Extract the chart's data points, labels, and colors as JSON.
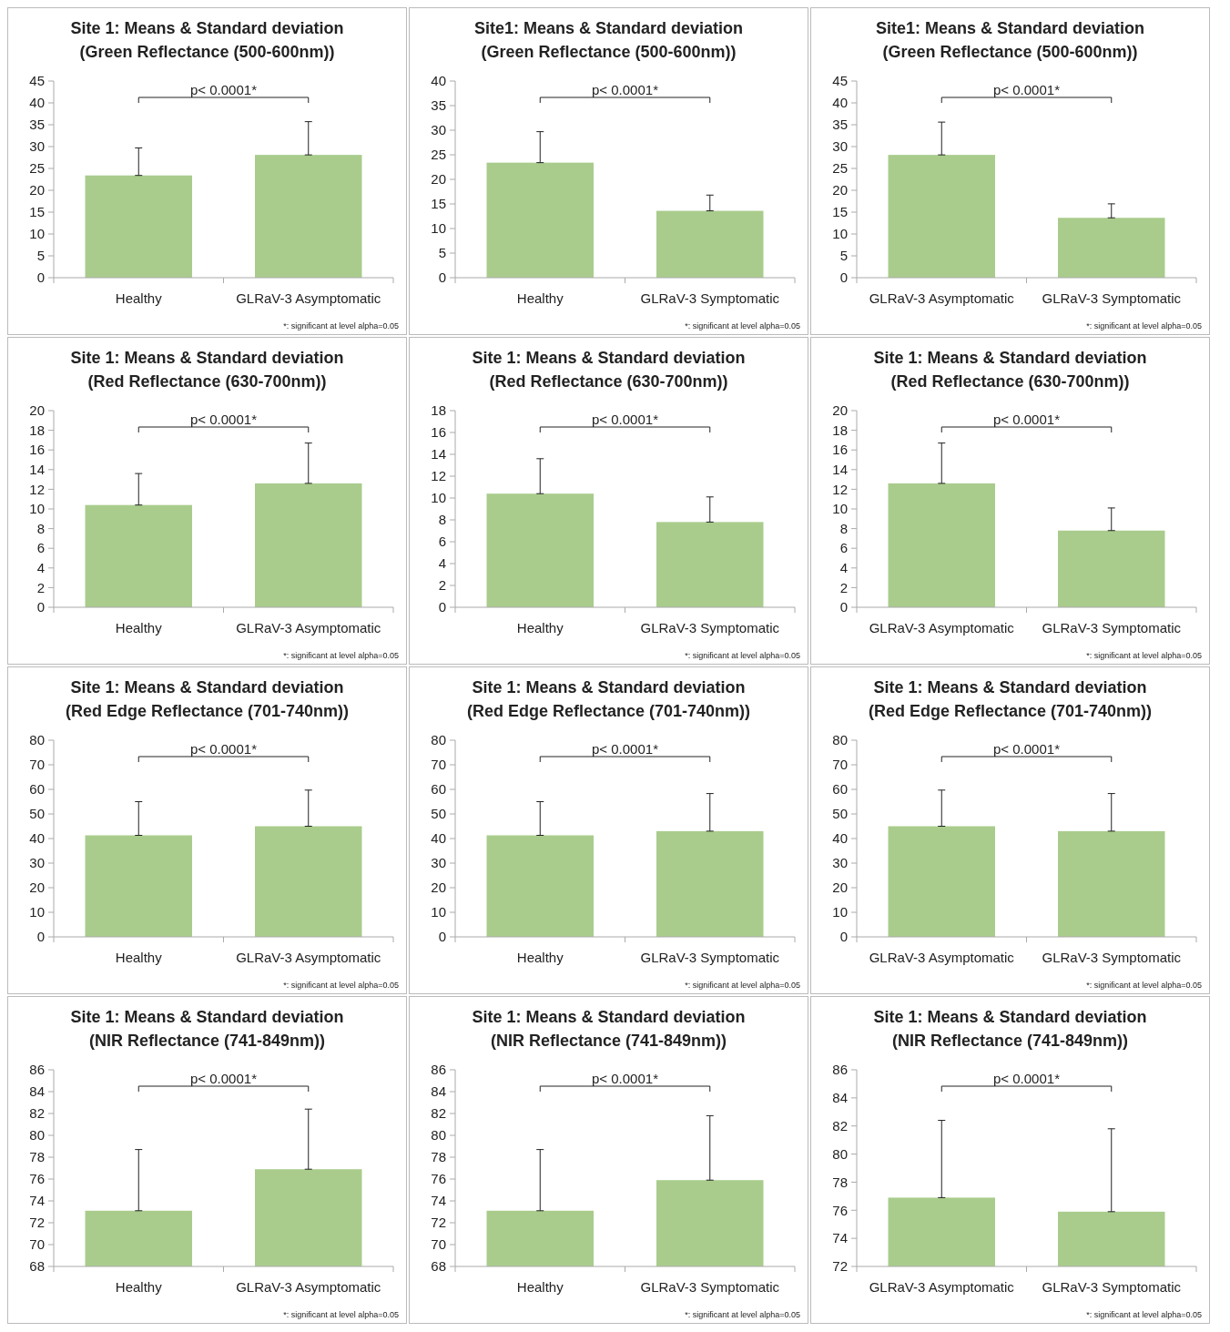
{
  "chart_data": [
    {
      "type": "bar",
      "title": "Site 1: Means & Standard deviation",
      "subtitle": "(Green Reflectance (500-600nm))",
      "categories": [
        "Healthy",
        "GLRaV-3 Asymptomatic"
      ],
      "values": [
        23.4,
        28.1
      ],
      "errors": [
        [
          23.4,
          29.7
        ],
        [
          28.1,
          35.7
        ]
      ],
      "color": "#a9cc8c",
      "ylim": [
        0,
        45
      ],
      "yticks": [
        0,
        5,
        10,
        15,
        20,
        25,
        30,
        35,
        40,
        45
      ],
      "annotations": [
        "p< 0.0001*",
        "*: significant at level alpha=0.05"
      ]
    },
    {
      "type": "bar",
      "title": "Site1: Means & Standard deviation",
      "subtitle": "(Green Reflectance (500-600nm))",
      "categories": [
        "Healthy",
        "GLRaV-3 Symptomatic"
      ],
      "values": [
        23.4,
        13.6
      ],
      "errors": [
        [
          23.4,
          29.7
        ],
        [
          13.6,
          16.8
        ]
      ],
      "color": "#a9cc8c",
      "ylim": [
        0,
        40
      ],
      "yticks": [
        0,
        5,
        10,
        15,
        20,
        25,
        30,
        35,
        40
      ],
      "annotations": [
        "p< 0.0001*",
        "*: significant at level alpha=0.05"
      ]
    },
    {
      "type": "bar",
      "title": "Site1: Means & Standard deviation",
      "subtitle": "(Green Reflectance (500-600nm))",
      "categories": [
        "GLRaV-3 Asymptomatic",
        "GLRaV-3 Symptomatic"
      ],
      "values": [
        28.1,
        13.7
      ],
      "errors": [
        [
          28.1,
          35.6
        ],
        [
          13.7,
          16.9
        ]
      ],
      "color": "#a9cc8c",
      "ylim": [
        0,
        45
      ],
      "yticks": [
        0,
        5,
        10,
        15,
        20,
        25,
        30,
        35,
        40,
        45
      ],
      "annotations": [
        "p< 0.0001*",
        "*: significant at level alpha=0.05"
      ]
    },
    {
      "type": "bar",
      "title": "Site 1: Means & Standard deviation",
      "subtitle": "(Red Reflectance (630-700nm))",
      "categories": [
        "Healthy",
        "GLRaV-3 Asymptomatic"
      ],
      "values": [
        10.4,
        12.6
      ],
      "errors": [
        [
          10.4,
          13.6
        ],
        [
          12.6,
          16.7
        ]
      ],
      "color": "#a9cc8c",
      "ylim": [
        0,
        20
      ],
      "yticks": [
        0,
        2,
        4,
        6,
        8,
        10,
        12,
        14,
        16,
        18,
        20
      ],
      "annotations": [
        "p< 0.0001*",
        "*: significant at level alpha=0.05"
      ]
    },
    {
      "type": "bar",
      "title": "Site 1: Means & Standard deviation",
      "subtitle": "(Red Reflectance (630-700nm))",
      "categories": [
        "Healthy",
        "GLRaV-3 Symptomatic"
      ],
      "values": [
        10.4,
        7.8
      ],
      "errors": [
        [
          10.4,
          13.6
        ],
        [
          7.8,
          10.1
        ]
      ],
      "color": "#a9cc8c",
      "ylim": [
        0,
        18
      ],
      "yticks": [
        0,
        2,
        4,
        6,
        8,
        10,
        12,
        14,
        16,
        18
      ],
      "annotations": [
        "p< 0.0001*",
        "*: significant at level alpha=0.05"
      ]
    },
    {
      "type": "bar",
      "title": "Site 1: Means & Standard deviation",
      "subtitle": "(Red Reflectance (630-700nm))",
      "categories": [
        "GLRaV-3 Asymptomatic",
        "GLRaV-3 Symptomatic"
      ],
      "values": [
        12.6,
        7.8
      ],
      "errors": [
        [
          12.6,
          16.7
        ],
        [
          7.8,
          10.1
        ]
      ],
      "color": "#a9cc8c",
      "ylim": [
        0,
        20
      ],
      "yticks": [
        0,
        2,
        4,
        6,
        8,
        10,
        12,
        14,
        16,
        18,
        20
      ],
      "annotations": [
        "p< 0.0001*",
        "*: significant at level alpha=0.05"
      ]
    },
    {
      "type": "bar",
      "title": "Site 1: Means & Standard deviation",
      "subtitle": "(Red Edge Reflectance (701-740nm))",
      "categories": [
        "Healthy",
        "GLRaV-3 Asymptomatic"
      ],
      "values": [
        41.3,
        45
      ],
      "errors": [
        [
          41.3,
          55
        ],
        [
          45,
          59.7
        ]
      ],
      "color": "#a9cc8c",
      "ylim": [
        0,
        80
      ],
      "yticks": [
        0,
        10,
        20,
        30,
        40,
        50,
        60,
        70,
        80
      ],
      "annotations": [
        "p< 0.0001*",
        "*: significant at level alpha=0.05"
      ]
    },
    {
      "type": "bar",
      "title": "Site 1: Means & Standard deviation",
      "subtitle": "(Red Edge Reflectance (701-740nm))",
      "categories": [
        "Healthy",
        "GLRaV-3 Symptomatic"
      ],
      "values": [
        41.3,
        43
      ],
      "errors": [
        [
          41.3,
          55
        ],
        [
          43,
          58.3
        ]
      ],
      "color": "#a9cc8c",
      "ylim": [
        0,
        80
      ],
      "yticks": [
        0,
        10,
        20,
        30,
        40,
        50,
        60,
        70,
        80
      ],
      "annotations": [
        "p< 0.0001*",
        "*: significant at level alpha=0.05"
      ]
    },
    {
      "type": "bar",
      "title": "Site 1: Means & Standard deviation",
      "subtitle": "(Red Edge Reflectance (701-740nm))",
      "categories": [
        "GLRaV-3 Asymptomatic",
        "GLRaV-3 Symptomatic"
      ],
      "values": [
        45,
        43
      ],
      "errors": [
        [
          45,
          59.7
        ],
        [
          43,
          58.3
        ]
      ],
      "color": "#a9cc8c",
      "ylim": [
        0,
        80
      ],
      "yticks": [
        0,
        10,
        20,
        30,
        40,
        50,
        60,
        70,
        80
      ],
      "annotations": [
        "p< 0.0001*",
        "*: significant at level alpha=0.05"
      ]
    },
    {
      "type": "bar",
      "title": "Site 1: Means & Standard deviation",
      "subtitle": "(NIR Reflectance (741-849nm))",
      "categories": [
        "Healthy",
        "GLRaV-3 Asymptomatic"
      ],
      "values": [
        73.1,
        76.9
      ],
      "errors": [
        [
          73.1,
          78.7
        ],
        [
          76.9,
          82.4
        ]
      ],
      "color": "#a9cc8c",
      "ylim": [
        68,
        86
      ],
      "yticks": [
        68,
        70,
        72,
        74,
        76,
        78,
        80,
        82,
        84,
        86
      ],
      "annotations": [
        "p< 0.0001*",
        "*: significant at level alpha=0.05"
      ]
    },
    {
      "type": "bar",
      "title": "Site 1: Means & Standard deviation",
      "subtitle": "(NIR Reflectance (741-849nm))",
      "categories": [
        "Healthy",
        "GLRaV-3 Symptomatic"
      ],
      "values": [
        73.1,
        75.9
      ],
      "errors": [
        [
          73.1,
          78.7
        ],
        [
          75.9,
          81.8
        ]
      ],
      "color": "#a9cc8c",
      "ylim": [
        68,
        86
      ],
      "yticks": [
        68,
        70,
        72,
        74,
        76,
        78,
        80,
        82,
        84,
        86
      ],
      "annotations": [
        "p< 0.0001*",
        "*: significant at level alpha=0.05"
      ]
    },
    {
      "type": "bar",
      "title": "Site 1: Means & Standard deviation",
      "subtitle": "(NIR Reflectance (741-849nm))",
      "categories": [
        "GLRaV-3 Asymptomatic",
        "GLRaV-3 Symptomatic"
      ],
      "values": [
        76.9,
        75.9
      ],
      "errors": [
        [
          76.9,
          82.4
        ],
        [
          75.9,
          81.8
        ]
      ],
      "color": "#a9cc8c",
      "ylim": [
        72,
        86
      ],
      "yticks": [
        72,
        74,
        76,
        78,
        80,
        82,
        84,
        86
      ],
      "annotations": [
        "p< 0.0001*",
        "*: significant at level alpha=0.05"
      ]
    }
  ]
}
